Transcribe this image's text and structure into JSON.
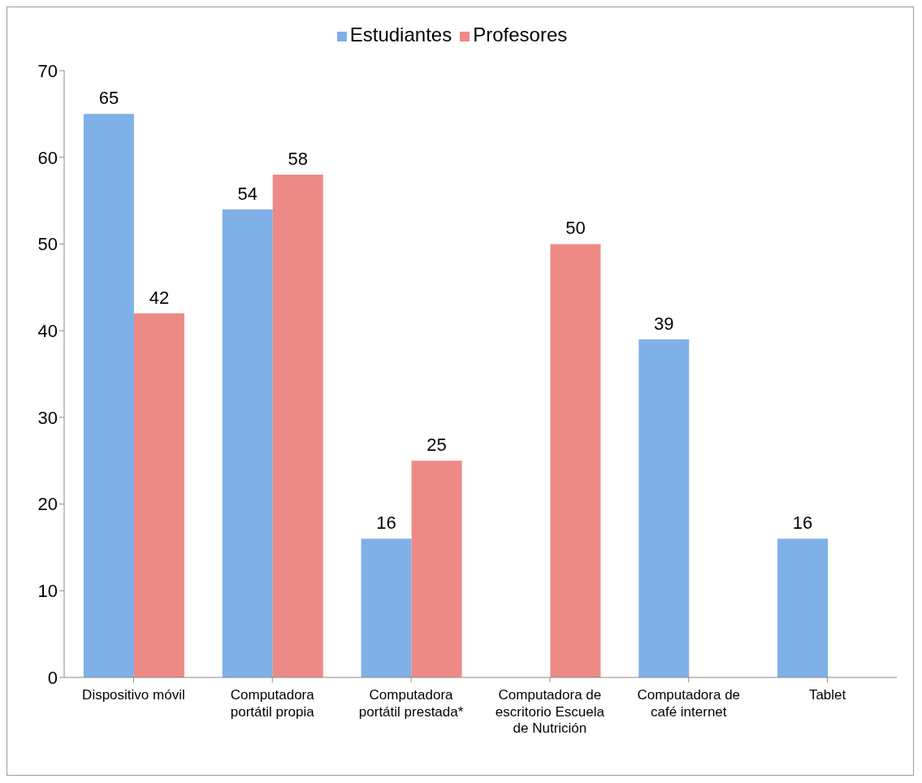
{
  "chart_data": {
    "type": "bar",
    "categories": [
      "Dispositivo móvil",
      "Computadora portátil propia",
      "Computadora portátil prestada*",
      "Computadora de escritorio Escuela de Nutrición",
      "Computadora de café internet",
      "Tablet"
    ],
    "series": [
      {
        "name": "Estudiantes",
        "color": "#7fb0e8",
        "values": [
          65,
          54,
          16,
          null,
          39,
          16
        ]
      },
      {
        "name": "Profesores",
        "color": "#ee8a86",
        "values": [
          42,
          58,
          25,
          50,
          null,
          null
        ]
      }
    ],
    "ylim": [
      0,
      70
    ],
    "yticks": [
      0,
      10,
      20,
      30,
      40,
      50,
      60,
      70
    ],
    "legend": "top",
    "data_labels": true
  }
}
